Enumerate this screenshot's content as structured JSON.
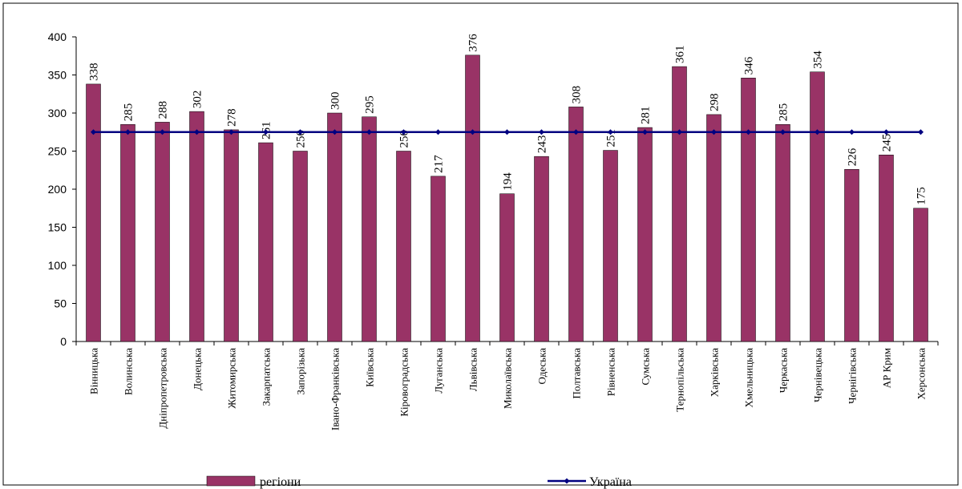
{
  "chart_data": {
    "type": "bar",
    "categories": [
      "Вінницька",
      "Волинська",
      "Дніпропетровська",
      "Донецька",
      "Житомирська",
      "Закарпатська",
      "Запорізька",
      "Івано-Франківська",
      "Київська",
      "Кіровоградська",
      "Луганська",
      "Львівська",
      "Миколаївська",
      "Одеська",
      "Полтавська",
      "Рівненська",
      "Сумська",
      "Тернопільська",
      "Харківська",
      "Хмельницька",
      "Черкаська",
      "Чернівецька",
      "Чернігівська",
      "АР Крим",
      "Херсонська"
    ],
    "series": [
      {
        "name": "регіони",
        "type": "bar",
        "color": "#993366",
        "values": [
          338,
          285,
          288,
          302,
          278,
          261,
          250,
          300,
          295,
          250,
          217,
          376,
          194,
          243,
          308,
          251,
          281,
          361,
          298,
          346,
          285,
          354,
          226,
          245,
          175
        ]
      },
      {
        "name": "Україна",
        "type": "line",
        "color": "#000080",
        "values": [
          275,
          275,
          275,
          275,
          275,
          275,
          275,
          275,
          275,
          275,
          275,
          275,
          275,
          275,
          275,
          275,
          275,
          275,
          275,
          275,
          275,
          275,
          275,
          275,
          275
        ]
      }
    ],
    "ylim": [
      0,
      400
    ],
    "yticks": [
      0,
      50,
      100,
      150,
      200,
      250,
      300,
      350,
      400
    ],
    "grid": false
  }
}
